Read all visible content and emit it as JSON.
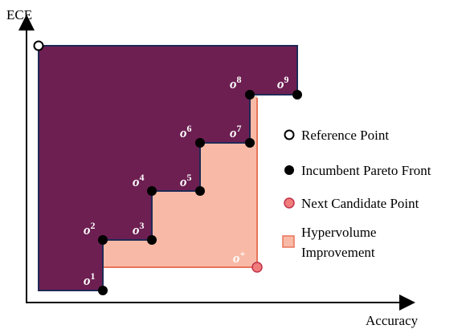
{
  "axes": {
    "y_label": "ECE",
    "x_label": "Accuracy"
  },
  "pareto_points": [
    {
      "label": "o",
      "sup": "1"
    },
    {
      "label": "o",
      "sup": "2"
    },
    {
      "label": "o",
      "sup": "3"
    },
    {
      "label": "o",
      "sup": "4"
    },
    {
      "label": "o",
      "sup": "5"
    },
    {
      "label": "o",
      "sup": "6"
    },
    {
      "label": "o",
      "sup": "7"
    },
    {
      "label": "o",
      "sup": "8"
    },
    {
      "label": "o",
      "sup": "9"
    }
  ],
  "candidate": {
    "label": "o",
    "sup": "+"
  },
  "legend": [
    "Reference Point",
    "Incumbent Pareto Front",
    "Next Candidate Point",
    "Hypervolume",
    "Improvement"
  ]
}
